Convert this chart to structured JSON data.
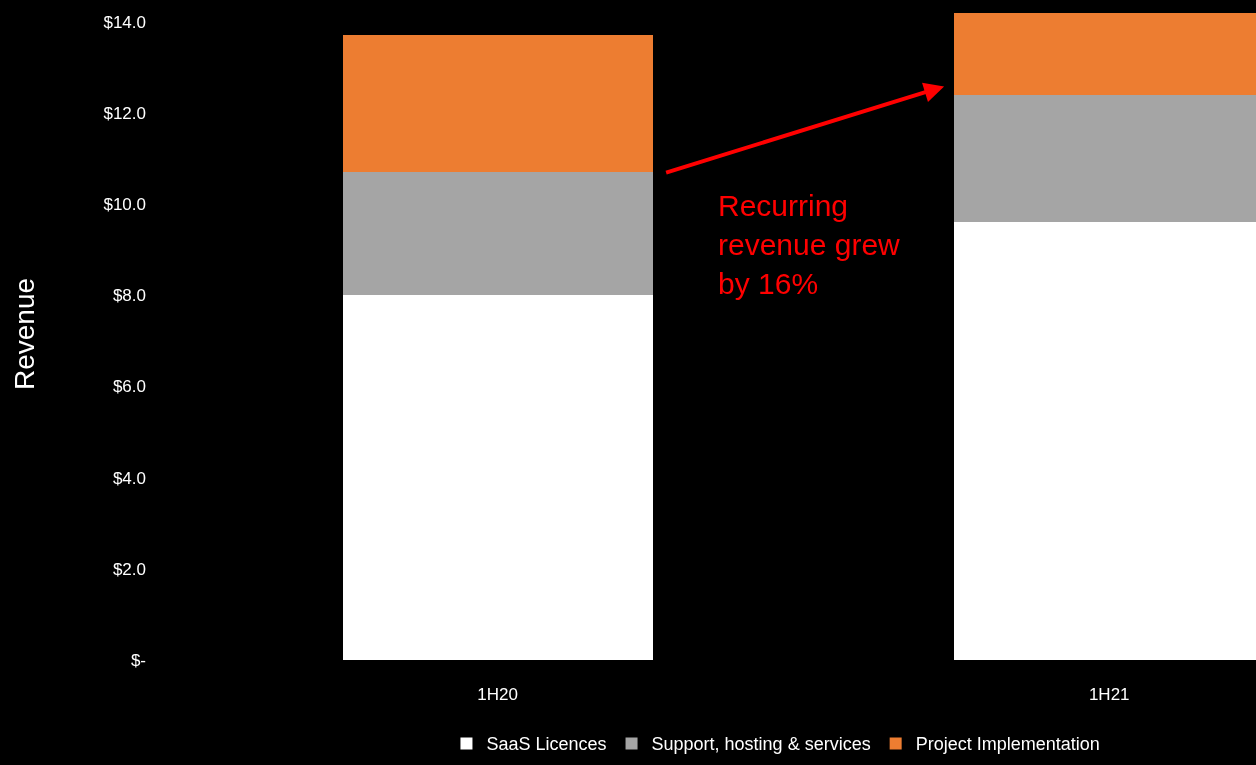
{
  "chart_data": {
    "type": "bar",
    "stacked": true,
    "ylabel": "Revenue",
    "categories": [
      "1H20",
      "1H21"
    ],
    "series": [
      {
        "name": "SaaS Licences",
        "color": "#ffffff",
        "values": [
          8.0,
          9.6
        ]
      },
      {
        "name": "Support, hosting & services",
        "color": "#a5a5a5",
        "values": [
          2.7,
          2.8
        ]
      },
      {
        "name": "Project Implementation",
        "color": "#ed7d31",
        "values": [
          3.0,
          1.8
        ]
      }
    ],
    "ylim": [
      0,
      14.3
    ],
    "yticks": [
      {
        "value": 0,
        "label": "$-"
      },
      {
        "value": 2,
        "label": "$2.0"
      },
      {
        "value": 4,
        "label": "$4.0"
      },
      {
        "value": 6,
        "label": "$6.0"
      },
      {
        "value": 8,
        "label": "$8.0"
      },
      {
        "value": 10,
        "label": "$10.0"
      },
      {
        "value": 12,
        "label": "$12.0"
      },
      {
        "value": 14,
        "label": "$14.0"
      }
    ],
    "grid": false,
    "legend": "bottom",
    "annotations": [
      "Recurring revenue grew by 16%"
    ]
  }
}
